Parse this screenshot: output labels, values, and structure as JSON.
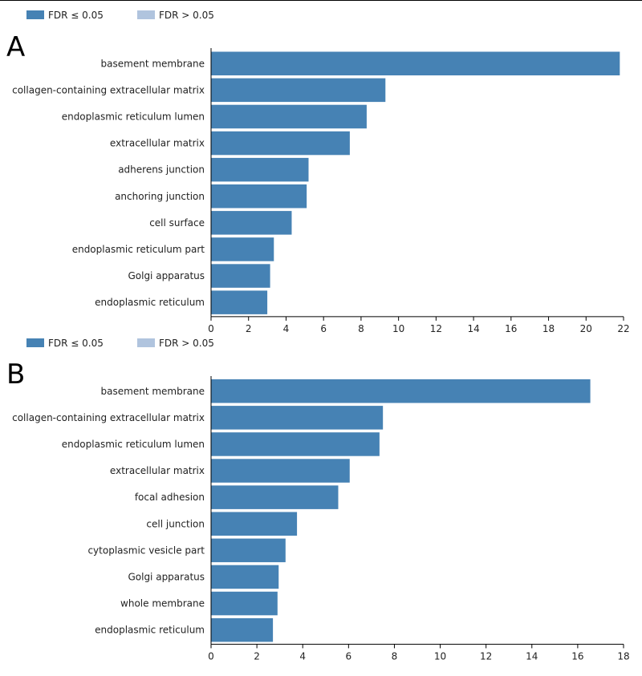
{
  "legend": {
    "items": [
      {
        "label": "FDR ≤ 0.05",
        "color": "#4682b4"
      },
      {
        "label": "FDR > 0.05",
        "color": "#b0c4de"
      }
    ]
  },
  "chart_data": [
    {
      "type": "bar",
      "orientation": "horizontal",
      "panel": "A",
      "categories": [
        "basement membrane",
        "collagen-containing extracellular matrix",
        "endoplasmic reticulum lumen",
        "extracellular matrix",
        "adherens junction",
        "anchoring junction",
        "cell surface",
        "endoplasmic reticulum part",
        "Golgi apparatus",
        "endoplasmic reticulum"
      ],
      "values": [
        21.8,
        9.3,
        8.3,
        7.4,
        5.2,
        5.1,
        4.3,
        3.35,
        3.15,
        3.0
      ],
      "xlim": [
        0,
        22
      ],
      "xticks": [
        0,
        2,
        4,
        6,
        8,
        10,
        12,
        14,
        16,
        18,
        20,
        22
      ],
      "bar_color": "#4682b4"
    },
    {
      "type": "bar",
      "orientation": "horizontal",
      "panel": "B",
      "categories": [
        "basement membrane",
        "collagen-containing extracellular matrix",
        "endoplasmic reticulum lumen",
        "extracellular matrix",
        "focal adhesion",
        "cell junction",
        "cytoplasmic vesicle part",
        "Golgi apparatus",
        "whole membrane",
        "endoplasmic reticulum"
      ],
      "values": [
        16.55,
        7.5,
        7.35,
        6.05,
        5.55,
        3.75,
        3.25,
        2.95,
        2.9,
        2.7
      ],
      "xlim": [
        0,
        18
      ],
      "xticks": [
        0,
        2,
        4,
        6,
        8,
        10,
        12,
        14,
        16,
        18
      ],
      "bar_color": "#4682b4"
    }
  ]
}
